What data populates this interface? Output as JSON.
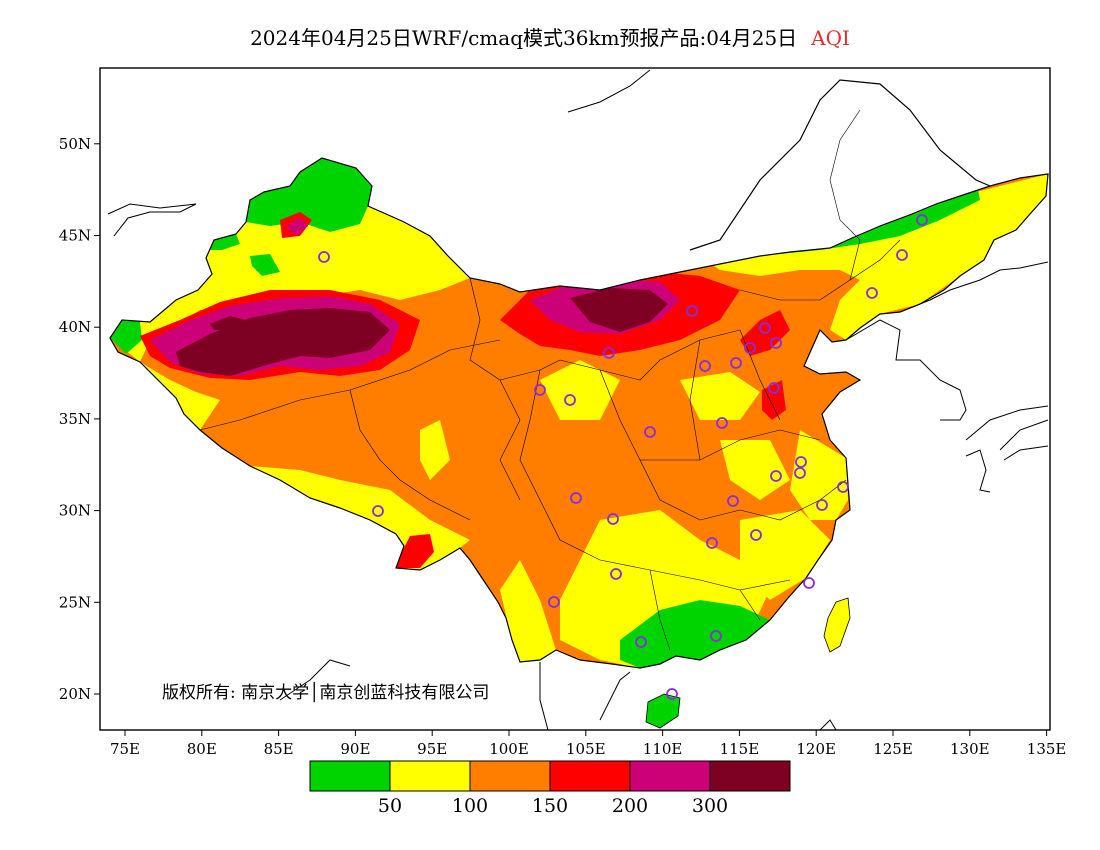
{
  "title": {
    "text": "2024年04月25日WRF/cmaq模式36km预报产品:04月25日",
    "variable": "AQI"
  },
  "axes": {
    "lon_ticks": [
      "75E",
      "80E",
      "85E",
      "90E",
      "95E",
      "100E",
      "105E",
      "110E",
      "115E",
      "120E",
      "125E",
      "130E",
      "135E"
    ],
    "lat_ticks": [
      "20N",
      "25N",
      "30N",
      "35N",
      "40N",
      "45N",
      "50N"
    ]
  },
  "credit": "版权所有: 南京大学│南京创蓝科技有限公司",
  "colorbar": {
    "colors": [
      "#00d400",
      "#ffff00",
      "#ff7e00",
      "#ff0000",
      "#cc0077",
      "#7e0023"
    ],
    "labels": [
      "50",
      "100",
      "150",
      "200",
      "300"
    ]
  },
  "colors": {
    "good": "#00d400",
    "moderate": "#ffff00",
    "sensitive": "#ff7e00",
    "unhealthy": "#ff0000",
    "very_unhealthy": "#cc0077",
    "hazardous": "#7e0023",
    "station_marker": "#8a2be2",
    "title_accent": "#e03030"
  }
}
